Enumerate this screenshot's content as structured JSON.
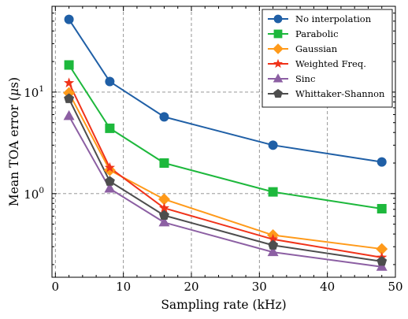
{
  "chart_data": {
    "type": "line",
    "xlabel": "Sampling rate (kHz)",
    "ylabel_prefix": "Mean TOA error (",
    "ylabel_mu": "μ",
    "ylabel_suffix": "s)",
    "xlim": [
      -0.5,
      50
    ],
    "ylim": [
      0.15,
      70
    ],
    "yscale": "log",
    "grid": true,
    "legend_position": "top-right",
    "x_ticks": [
      0,
      10,
      20,
      30,
      40,
      50
    ],
    "x_tick_labels": [
      "0",
      "10",
      "20",
      "30",
      "40",
      "50"
    ],
    "y_ticks": [
      1,
      10
    ],
    "y_tick_labels": [
      {
        "base": "10",
        "exp": "0"
      },
      {
        "base": "10",
        "exp": "1"
      }
    ],
    "x": [
      2,
      8,
      16,
      32,
      48
    ],
    "series": [
      {
        "name": "No interpolation",
        "color": "#1f5fa6",
        "marker": "circle",
        "values": [
          52,
          12.7,
          5.7,
          3.0,
          2.05
        ]
      },
      {
        "name": "Parabolic",
        "color": "#1db83c",
        "marker": "square",
        "values": [
          18.5,
          4.4,
          2.0,
          1.04,
          0.71
        ]
      },
      {
        "name": "Gaussian",
        "color": "#ff9a1a",
        "marker": "diamond",
        "values": [
          9.8,
          1.7,
          0.88,
          0.39,
          0.285
        ]
      },
      {
        "name": "Weighted Freq.",
        "color": "#f0331a",
        "marker": "star",
        "values": [
          12.3,
          1.8,
          0.72,
          0.355,
          0.235
        ]
      },
      {
        "name": "Sinc",
        "color": "#8c5fa3",
        "marker": "triangle",
        "values": [
          5.8,
          1.12,
          0.52,
          0.265,
          0.19
        ]
      },
      {
        "name": "Whittaker-Shannon",
        "color": "#4d4d4d",
        "marker": "pentagon",
        "values": [
          8.6,
          1.32,
          0.61,
          0.31,
          0.215
        ]
      }
    ]
  }
}
